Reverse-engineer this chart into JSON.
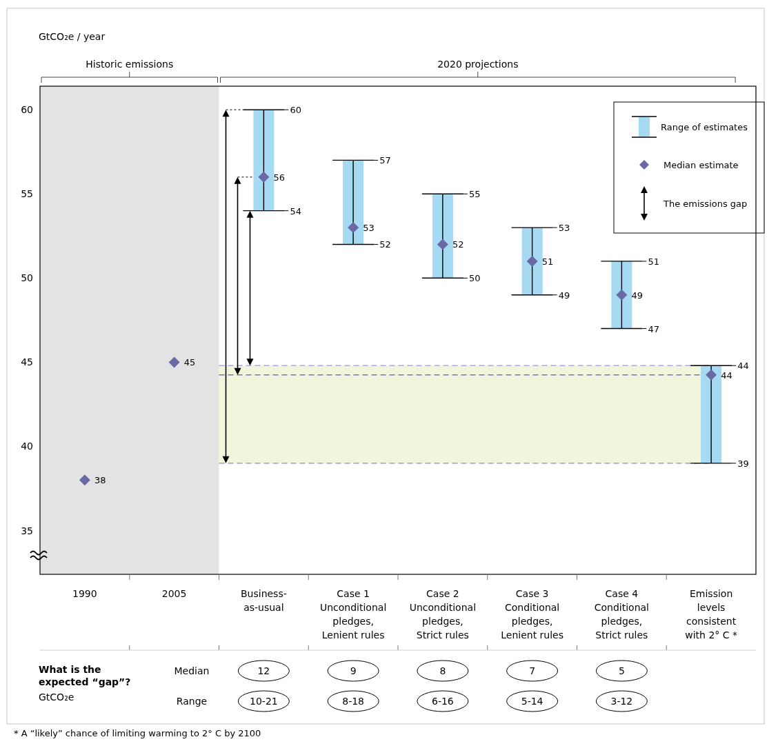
{
  "chart_data": [
    {
      "type": "bar",
      "ylabel": "GtCO₂e / year",
      "categories": [
        "1990",
        "2005",
        "Business-\nas-usual",
        "Case 1\nUnconditional\npledges,\nLenient rules",
        "Case 2\nUnconditional\npledges,\nStrict rules",
        "Case 3\nConditional\npledges,\nLenient rules",
        "Case 4\nConditional\npledges,\nStrict rules",
        "Emission\nlevels\nconsistent\nwith 2° C *"
      ],
      "series": [
        {
          "name": "Range of estimates",
          "type": "bar",
          "color": "#a6d9f2",
          "base": [
            null,
            null,
            54,
            52,
            50,
            49,
            47,
            39
          ],
          "values": [
            null,
            null,
            6,
            5,
            5,
            4,
            4,
            5.8
          ]
        },
        {
          "name": "Median estimate",
          "type": "scatter",
          "color": "#6b68a6",
          "values": [
            38,
            45,
            56,
            53,
            52,
            51,
            49,
            44.25
          ],
          "value_labels": [
            "38",
            "45",
            "56",
            "53",
            "52",
            "51",
            "49",
            "44"
          ]
        }
      ],
      "marker": "diamond",
      "legend": "top right",
      "grid": false,
      "ylim": [
        32.4,
        61.4
      ],
      "yticks": [
        35,
        40,
        45,
        50,
        55,
        60
      ],
      "bands": [
        {
          "axis": "x",
          "from": "1990",
          "to": "2005",
          "label": "Historic emissions",
          "color": "#e3e3e3"
        },
        {
          "axis": "y",
          "from": 39,
          "to": 44.8,
          "color": "#f1f5dc"
        }
      ],
      "ref_lines": [
        {
          "axis": "y",
          "value": 44.8,
          "color": "#a9a9d6",
          "line_style": "dashed"
        },
        {
          "axis": "y",
          "value": 39,
          "color": "#a9a9d6",
          "line_style": "dashed"
        },
        {
          "axis": "y",
          "value": 44.25,
          "color": "#7773c0",
          "line_style": "dashed"
        }
      ],
      "annotations": [
        {
          "text": "60",
          "x": "Business-\nas-usual",
          "y": 60
        },
        {
          "text": "54",
          "x": "Business-\nas-usual",
          "y": 54
        },
        {
          "text": "57",
          "x": "Case 1\nUnconditional\npledges,\nLenient rules",
          "y": 57
        },
        {
          "text": "52",
          "x": "Case 1\nUnconditional\npledges,\nLenient rules",
          "y": 52
        },
        {
          "text": "55",
          "x": "Case 2\nUnconditional\npledges,\nStrict rules",
          "y": 55
        },
        {
          "text": "50",
          "x": "Case 2\nUnconditional\npledges,\nStrict rules",
          "y": 50
        },
        {
          "text": "53",
          "x": "Case 3\nConditional\npledges,\nLenient rules",
          "y": 53
        },
        {
          "text": "49",
          "x": "Case 3\nConditional\npledges,\nLenient rules",
          "y": 49
        },
        {
          "text": "51",
          "x": "Case 4\nConditional\npledges,\nStrict rules",
          "y": 51
        },
        {
          "text": "47",
          "x": "Case 4\nConditional\npledges,\nStrict rules",
          "y": 47
        },
        {
          "text": "44",
          "x": "Emission\nlevels\nconsistent\nwith 2° C *",
          "y": 44.8
        },
        {
          "text": "39",
          "x": "Emission\nlevels\nconsistent\nwith 2° C *",
          "y": 39
        },
        "2020 projections",
        "The emissions gap",
        "* A “likely” chance of limiting warming to 2° C by 2100"
      ]
    },
    {
      "type": "other",
      "title": "What is the\nexpected “gap”?",
      "subtitle": "GtCO₂e",
      "categories": [
        null,
        null,
        null,
        null,
        null,
        null,
        null,
        null
      ],
      "y_categories": [
        "Median",
        "Range"
      ],
      "cell_labels": [
        [
          null,
          null,
          "12",
          "9",
          "8",
          "7",
          "5",
          null
        ],
        [
          null,
          null,
          "10-21",
          "8-18",
          "6-16",
          "5-14",
          "3-12",
          null
        ]
      ]
    }
  ]
}
